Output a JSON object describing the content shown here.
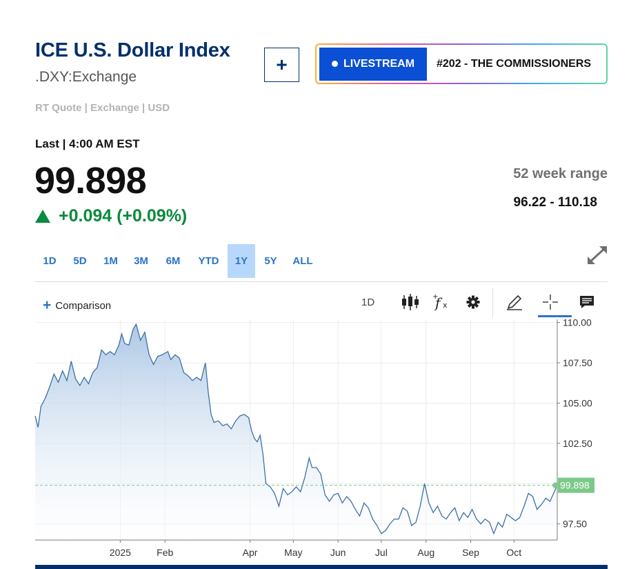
{
  "header": {
    "title": "ICE U.S. Dollar Index",
    "subtitle": ".DXY:Exchange",
    "add_label": "+",
    "livestream_label": "LIVESTREAM",
    "episode_label": "#202 - THE COMMISSIONERS"
  },
  "quote": {
    "meta": "RT Quote | Exchange | USD",
    "last_label": "Last | 4:00 AM EST",
    "price": "99.898",
    "change": "+0.094 (+0.09%)",
    "range_label": "52 week range",
    "range_value": "96.22 - 110.18"
  },
  "ranges": [
    "1D",
    "5D",
    "1M",
    "3M",
    "6M",
    "YTD",
    "1Y",
    "5Y",
    "ALL"
  ],
  "active_range": "1Y",
  "toolbar": {
    "comparison_label": "Comparison",
    "interval_label": "1D",
    "icons": [
      "candlestick-icon",
      "function-icon",
      "gear-icon",
      "pencil-icon",
      "crosshair-icon",
      "comment-icon"
    ]
  },
  "colors": {
    "brand": "#002f6c",
    "accent": "#2a73c9",
    "positive": "#0a8a3c",
    "line": "#3b6fa5",
    "area_top": "#a9c5e4",
    "last_badge": "#7cc98a"
  },
  "chart_data": {
    "type": "area",
    "ylim": [
      96.5,
      110.2
    ],
    "yticks": [
      97.5,
      100.0,
      102.5,
      105.0,
      107.5,
      110.0
    ],
    "ytick_labels": [
      "97.50",
      "",
      "102.50",
      "105.00",
      "107.50",
      "110.00"
    ],
    "xlim": [
      "2024-11-03",
      "2025-10-31"
    ],
    "xticks": [
      {
        "date": "2025-01-01",
        "label": "2025"
      },
      {
        "date": "2025-02-01",
        "label": "Feb"
      },
      {
        "date": "2025-04-01",
        "label": "Apr"
      },
      {
        "date": "2025-05-01",
        "label": "May"
      },
      {
        "date": "2025-06-01",
        "label": "Jun"
      },
      {
        "date": "2025-07-01",
        "label": "Jul"
      },
      {
        "date": "2025-08-01",
        "label": "Aug"
      },
      {
        "date": "2025-09-01",
        "label": "Sep"
      },
      {
        "date": "2025-10-01",
        "label": "Oct"
      }
    ],
    "last_value": 99.898,
    "last_label": "99.898",
    "reference_line": 99.9,
    "series": [
      {
        "points": [
          [
            "2024-11-03",
            104.2
          ],
          [
            "2024-11-05",
            103.5
          ],
          [
            "2024-11-07",
            104.8
          ],
          [
            "2024-11-10",
            105.3
          ],
          [
            "2024-11-13",
            106.0
          ],
          [
            "2024-11-16",
            106.8
          ],
          [
            "2024-11-19",
            106.3
          ],
          [
            "2024-11-22",
            107.0
          ],
          [
            "2024-11-25",
            106.4
          ],
          [
            "2024-11-28",
            107.6
          ],
          [
            "2024-12-01",
            106.5
          ],
          [
            "2024-12-04",
            106.1
          ],
          [
            "2024-12-07",
            106.6
          ],
          [
            "2024-12-10",
            106.2
          ],
          [
            "2024-12-13",
            106.9
          ],
          [
            "2024-12-16",
            107.2
          ],
          [
            "2024-12-19",
            108.3
          ],
          [
            "2024-12-22",
            108.0
          ],
          [
            "2024-12-25",
            108.2
          ],
          [
            "2024-12-28",
            108.0
          ],
          [
            "2024-12-31",
            108.6
          ],
          [
            "2025-01-02",
            109.3
          ],
          [
            "2025-01-04",
            108.7
          ],
          [
            "2025-01-07",
            108.6
          ],
          [
            "2025-01-10",
            109.6
          ],
          [
            "2025-01-12",
            109.9
          ],
          [
            "2025-01-15",
            108.9
          ],
          [
            "2025-01-18",
            109.4
          ],
          [
            "2025-01-21",
            108.0
          ],
          [
            "2025-01-24",
            107.4
          ],
          [
            "2025-01-27",
            107.9
          ],
          [
            "2025-01-30",
            108.0
          ],
          [
            "2025-02-03",
            108.2
          ],
          [
            "2025-02-05",
            107.7
          ],
          [
            "2025-02-08",
            108.0
          ],
          [
            "2025-02-11",
            107.8
          ],
          [
            "2025-02-14",
            106.9
          ],
          [
            "2025-02-17",
            106.7
          ],
          [
            "2025-02-20",
            106.4
          ],
          [
            "2025-02-23",
            106.6
          ],
          [
            "2025-02-26",
            106.4
          ],
          [
            "2025-03-01",
            107.5
          ],
          [
            "2025-03-03",
            105.7
          ],
          [
            "2025-03-05",
            104.3
          ],
          [
            "2025-03-07",
            103.8
          ],
          [
            "2025-03-10",
            103.9
          ],
          [
            "2025-03-13",
            103.6
          ],
          [
            "2025-03-16",
            103.7
          ],
          [
            "2025-03-19",
            103.4
          ],
          [
            "2025-03-22",
            103.9
          ],
          [
            "2025-03-25",
            104.2
          ],
          [
            "2025-03-28",
            104.3
          ],
          [
            "2025-03-31",
            104.1
          ],
          [
            "2025-04-02",
            103.3
          ],
          [
            "2025-04-04",
            102.8
          ],
          [
            "2025-04-06",
            102.6
          ],
          [
            "2025-04-08",
            103.0
          ],
          [
            "2025-04-10",
            101.8
          ],
          [
            "2025-04-12",
            100.0
          ],
          [
            "2025-04-15",
            99.8
          ],
          [
            "2025-04-18",
            99.4
          ],
          [
            "2025-04-21",
            98.6
          ],
          [
            "2025-04-24",
            99.7
          ],
          [
            "2025-04-27",
            99.3
          ],
          [
            "2025-04-30",
            99.5
          ],
          [
            "2025-05-03",
            99.8
          ],
          [
            "2025-05-06",
            99.5
          ],
          [
            "2025-05-09",
            100.4
          ],
          [
            "2025-05-12",
            101.6
          ],
          [
            "2025-05-14",
            101.0
          ],
          [
            "2025-05-17",
            101.0
          ],
          [
            "2025-05-20",
            100.6
          ],
          [
            "2025-05-23",
            99.3
          ],
          [
            "2025-05-26",
            98.9
          ],
          [
            "2025-05-29",
            99.3
          ],
          [
            "2025-06-01",
            99.4
          ],
          [
            "2025-06-04",
            98.8
          ],
          [
            "2025-06-07",
            99.2
          ],
          [
            "2025-06-10",
            98.9
          ],
          [
            "2025-06-13",
            98.4
          ],
          [
            "2025-06-16",
            98.0
          ],
          [
            "2025-06-19",
            98.8
          ],
          [
            "2025-06-22",
            98.5
          ],
          [
            "2025-06-25",
            97.8
          ],
          [
            "2025-06-28",
            97.4
          ],
          [
            "2025-07-01",
            96.9
          ],
          [
            "2025-07-04",
            97.1
          ],
          [
            "2025-07-07",
            97.5
          ],
          [
            "2025-07-10",
            97.8
          ],
          [
            "2025-07-13",
            97.8
          ],
          [
            "2025-07-16",
            98.5
          ],
          [
            "2025-07-19",
            98.3
          ],
          [
            "2025-07-22",
            97.4
          ],
          [
            "2025-07-25",
            97.6
          ],
          [
            "2025-07-28",
            98.6
          ],
          [
            "2025-07-31",
            100.0
          ],
          [
            "2025-08-03",
            98.8
          ],
          [
            "2025-08-06",
            98.2
          ],
          [
            "2025-08-09",
            98.6
          ],
          [
            "2025-08-12",
            98.0
          ],
          [
            "2025-08-15",
            97.8
          ],
          [
            "2025-08-18",
            98.2
          ],
          [
            "2025-08-21",
            98.5
          ],
          [
            "2025-08-24",
            97.7
          ],
          [
            "2025-08-27",
            98.2
          ],
          [
            "2025-08-30",
            97.9
          ],
          [
            "2025-09-02",
            98.4
          ],
          [
            "2025-09-05",
            97.8
          ],
          [
            "2025-09-08",
            97.5
          ],
          [
            "2025-09-11",
            97.8
          ],
          [
            "2025-09-14",
            97.6
          ],
          [
            "2025-09-17",
            96.9
          ],
          [
            "2025-09-20",
            97.6
          ],
          [
            "2025-09-23",
            97.3
          ],
          [
            "2025-09-26",
            98.1
          ],
          [
            "2025-09-29",
            97.9
          ],
          [
            "2025-10-02",
            97.7
          ],
          [
            "2025-10-05",
            97.9
          ],
          [
            "2025-10-08",
            98.6
          ],
          [
            "2025-10-11",
            99.4
          ],
          [
            "2025-10-14",
            99.2
          ],
          [
            "2025-10-17",
            98.4
          ],
          [
            "2025-10-20",
            98.7
          ],
          [
            "2025-10-23",
            99.1
          ],
          [
            "2025-10-26",
            98.9
          ],
          [
            "2025-10-29",
            99.5
          ],
          [
            "2025-10-31",
            99.9
          ]
        ]
      }
    ]
  }
}
